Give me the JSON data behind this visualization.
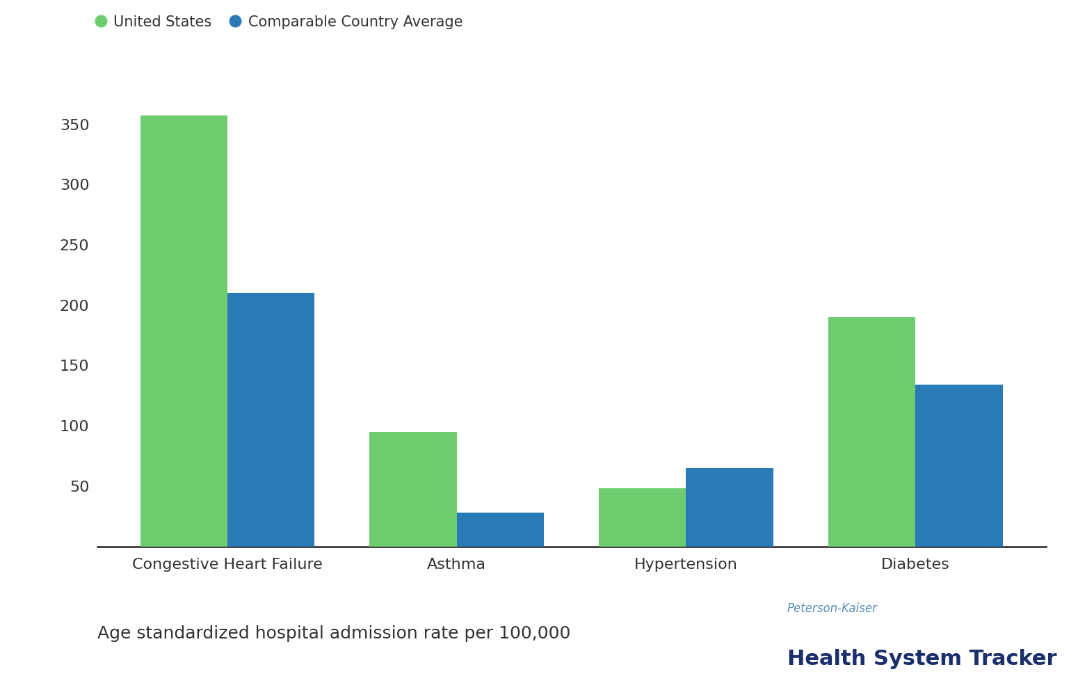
{
  "categories": [
    "Congestive Heart Failure",
    "Asthma",
    "Hypertension",
    "Diabetes"
  ],
  "us_values": [
    357,
    95,
    48,
    190
  ],
  "comparable_values": [
    210,
    28,
    65,
    134
  ],
  "us_color": "#6dcc6d",
  "comparable_color": "#2b7ab8",
  "us_label": "United States",
  "comparable_label": "Comparable Country Average",
  "xlabel_note": "Age standardized hospital admission rate per 100,000",
  "ylim": [
    0,
    385
  ],
  "yticks": [
    50,
    100,
    150,
    200,
    250,
    300,
    350
  ],
  "bar_width": 0.38,
  "background_color": "#ffffff",
  "footer_label1": "Peterson-Kaiser",
  "footer_label2": "Health System Tracker",
  "footer_color1": "#5b8db8",
  "footer_color2": "#1a2f6b",
  "tick_color": "#333333",
  "xlabel_fontsize": 18,
  "tick_fontsize": 16
}
